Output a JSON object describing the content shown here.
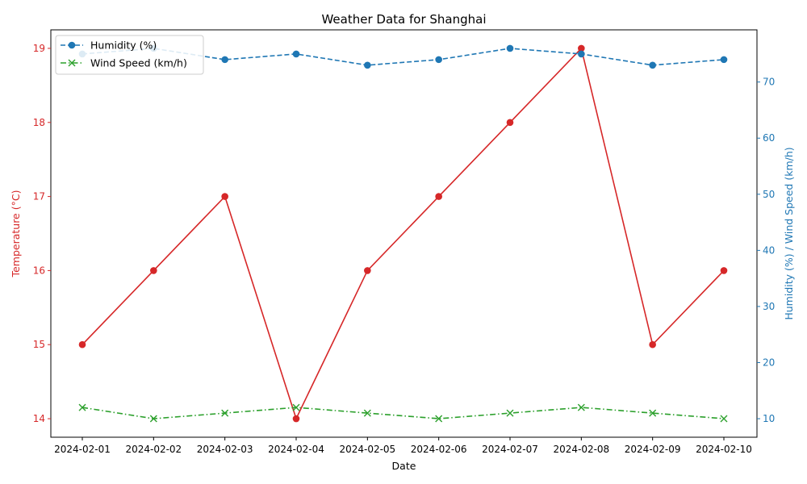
{
  "chart_data": {
    "type": "line",
    "title": "Weather Data for Shanghai",
    "xlabel": "Date",
    "ylabel_left": "Temperature (°C)",
    "ylabel_right": "Humidity (%) / Wind Speed (km/h)",
    "x": [
      "2024-02-01",
      "2024-02-02",
      "2024-02-03",
      "2024-02-04",
      "2024-02-05",
      "2024-02-06",
      "2024-02-07",
      "2024-02-08",
      "2024-02-09",
      "2024-02-10"
    ],
    "left_axis": {
      "ylim": [
        13.75,
        19.25
      ],
      "ticks": [
        14,
        15,
        16,
        17,
        18,
        19
      ],
      "color": "#d62728"
    },
    "right_axis": {
      "ylim": [
        6.7,
        79.3
      ],
      "ticks": [
        10,
        20,
        30,
        40,
        50,
        60,
        70
      ],
      "color": "#1f77b4"
    },
    "series": [
      {
        "name": "",
        "axis": "left",
        "color": "#d62728",
        "line": "solid",
        "marker": "circle",
        "values": [
          15,
          16,
          17,
          14,
          16,
          17,
          18,
          19,
          15,
          16
        ]
      },
      {
        "name": "Humidity (%)",
        "axis": "right",
        "color": "#1f77b4",
        "line": "dashed",
        "marker": "circle",
        "values": [
          75,
          76,
          74,
          75,
          73,
          74,
          76,
          75,
          73,
          74
        ]
      },
      {
        "name": "Wind Speed (km/h)",
        "axis": "right",
        "color": "#2ca02c",
        "line": "dashdot",
        "marker": "x",
        "values": [
          12,
          10,
          11,
          12,
          11,
          10,
          11,
          12,
          11,
          10
        ]
      }
    ],
    "legend": {
      "position": "top-left",
      "entries": [
        "Humidity (%)",
        "Wind Speed (km/h)"
      ]
    },
    "grid": false
  }
}
